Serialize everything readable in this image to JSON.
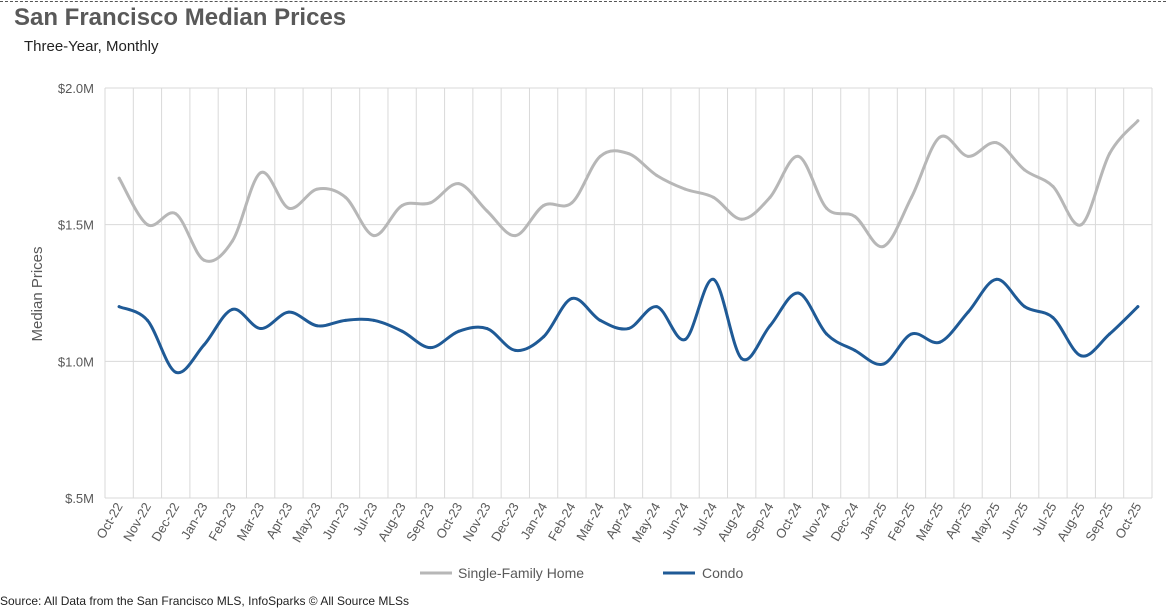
{
  "title": "San Francisco Median Prices",
  "subtitle": "Three-Year, Monthly",
  "source": "Source: All Data from the San Francisco MLS, InfoSparks © All Source MLSs",
  "chart_data": {
    "type": "line",
    "title": "San Francisco Median Prices",
    "subtitle": "Three-Year, Monthly",
    "xlabel": "",
    "ylabel": "Median Prices",
    "ylim": [
      0.5,
      2.0
    ],
    "y_unit": "$M",
    "y_ticks": [
      {
        "value": 0.5,
        "label": "$.5M"
      },
      {
        "value": 1.0,
        "label": "$1.0M"
      },
      {
        "value": 1.5,
        "label": "$1.5M"
      },
      {
        "value": 2.0,
        "label": "$2.0M"
      }
    ],
    "grid": true,
    "legend_position": "bottom",
    "categories": [
      "Oct-22",
      "Nov-22",
      "Dec-22",
      "Jan-23",
      "Feb-23",
      "Mar-23",
      "Apr-23",
      "May-23",
      "Jun-23",
      "Jul-23",
      "Aug-23",
      "Sep-23",
      "Oct-23",
      "Nov-23",
      "Dec-23",
      "Jan-24",
      "Feb-24",
      "Mar-24",
      "Apr-24",
      "May-24",
      "Jun-24",
      "Jul-24",
      "Aug-24",
      "Sep-24",
      "Oct-24",
      "Nov-24",
      "Dec-24",
      "Jan-25",
      "Feb-25",
      "Mar-25",
      "Apr-25",
      "May-25",
      "Jun-25",
      "Jul-25",
      "Aug-25",
      "Sep-25",
      "Oct-25"
    ],
    "series": [
      {
        "name": "Single-Family Home",
        "color": "#b7b7b7",
        "values": [
          1.67,
          1.5,
          1.54,
          1.37,
          1.44,
          1.69,
          1.56,
          1.63,
          1.6,
          1.46,
          1.57,
          1.58,
          1.65,
          1.55,
          1.46,
          1.57,
          1.58,
          1.75,
          1.76,
          1.68,
          1.63,
          1.6,
          1.52,
          1.6,
          1.75,
          1.56,
          1.53,
          1.42,
          1.6,
          1.82,
          1.75,
          1.8,
          1.7,
          1.64,
          1.5,
          1.76,
          1.88
        ]
      },
      {
        "name": "Condo",
        "color": "#1f5a96",
        "values": [
          1.2,
          1.15,
          0.96,
          1.06,
          1.19,
          1.12,
          1.18,
          1.13,
          1.15,
          1.15,
          1.11,
          1.05,
          1.11,
          1.12,
          1.04,
          1.09,
          1.23,
          1.15,
          1.12,
          1.2,
          1.08,
          1.3,
          1.01,
          1.13,
          1.25,
          1.1,
          1.04,
          0.99,
          1.1,
          1.07,
          1.18,
          1.3,
          1.2,
          1.16,
          1.02,
          1.1,
          1.2
        ]
      }
    ]
  }
}
